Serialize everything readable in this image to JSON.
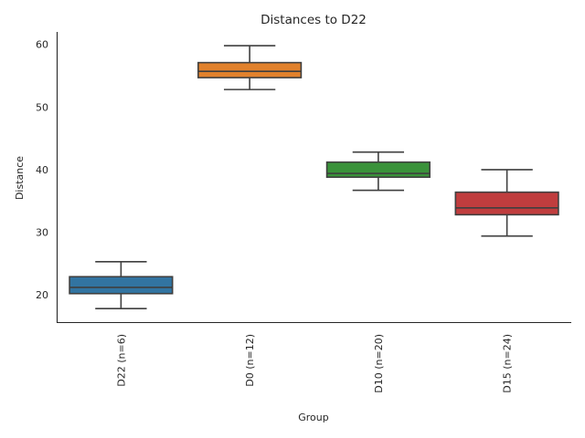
{
  "chart_data": {
    "type": "box",
    "title": "Distances to D22",
    "xlabel": "Group",
    "ylabel": "Distance",
    "ylim": [
      15.5,
      62
    ],
    "yticks": [
      20,
      30,
      40,
      50,
      60
    ],
    "grid": false,
    "legend": "none",
    "categories": [
      "D22 (n=6)",
      "D0 (n=12)",
      "D10 (n=20)",
      "D15 (n=24)"
    ],
    "boxes": [
      {
        "name": "D22 (n=6)",
        "whisker_low": 17.8,
        "q1": 20.2,
        "median": 21.2,
        "q3": 22.9,
        "whisker_high": 25.3,
        "color": "#3274a1"
      },
      {
        "name": "D0 (n=12)",
        "whisker_low": 52.8,
        "q1": 54.7,
        "median": 55.7,
        "q3": 57.1,
        "whisker_high": 59.8,
        "color": "#e1812c"
      },
      {
        "name": "D10 (n=20)",
        "whisker_low": 36.7,
        "q1": 38.8,
        "median": 39.4,
        "q3": 41.2,
        "whisker_high": 42.8,
        "color": "#3a923a"
      },
      {
        "name": "D15 (n=24)",
        "whisker_low": 29.4,
        "q1": 32.8,
        "median": 33.9,
        "q3": 36.4,
        "whisker_high": 40.0,
        "color": "#c03d3e"
      }
    ]
  }
}
